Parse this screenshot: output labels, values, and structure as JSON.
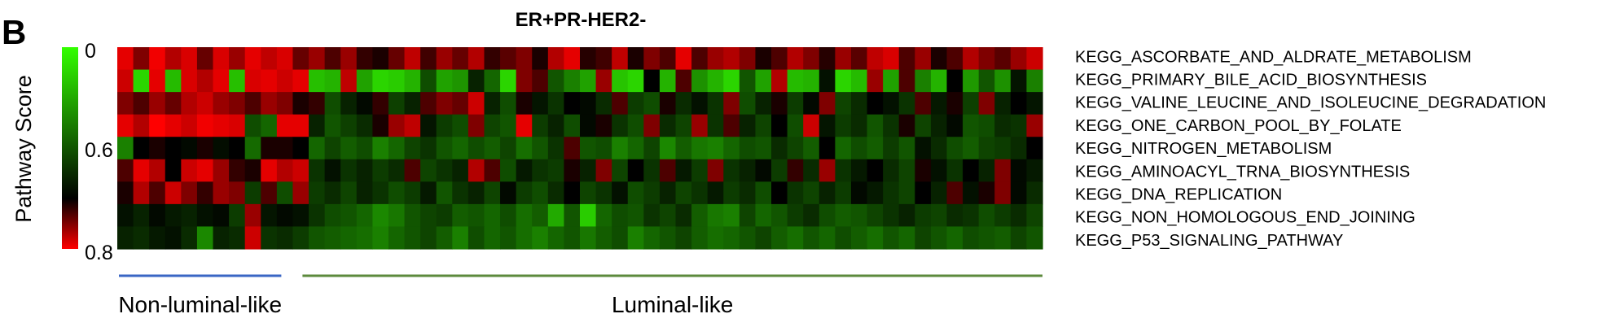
{
  "panel_letter": "B",
  "chart_data": {
    "type": "heatmap",
    "title": "ER+PR-HER2-",
    "colorbar": {
      "label": "Pathway Score",
      "ticks": [
        "0",
        "0.6",
        "0.8"
      ],
      "colors": {
        "low": "#33ff00",
        "mid": "#000000",
        "high": "#ff0000"
      }
    },
    "rows": [
      "KEGG_ASCORBATE_AND_ALDRATE_METABOLISM",
      "KEGG_PRIMARY_BILE_ACID_BIOSYNTHESIS",
      "KEGG_VALINE_LEUCINE_AND_ISOLEUCINE_DEGRADATION",
      "KEGG_ONE_CARBON_POOL_BY_FOLATE",
      "KEGG_NITROGEN_METABOLISM",
      "KEGG_AMINOACYL_TRNA_BIOSYNTHESIS",
      "KEGG_DNA_REPLICATION",
      "KEGG_NON_HOMOLOGOUS_END_JOINING",
      "KEGG_P53_SIGNALING_PATHWAY"
    ],
    "groups": [
      {
        "name": "Non-luminal-like",
        "columns": 11,
        "color": "#3a66c4"
      },
      {
        "name": "Luminal-like",
        "columns": 47,
        "color": "#5c8a3c"
      }
    ],
    "values": [
      [
        0.78,
        0.7,
        0.79,
        0.74,
        0.77,
        0.68,
        0.77,
        0.72,
        0.78,
        0.75,
        0.77,
        0.68,
        0.72,
        0.66,
        0.72,
        0.64,
        0.62,
        0.68,
        0.75,
        0.65,
        0.72,
        0.68,
        0.74,
        0.64,
        0.67,
        0.7,
        0.62,
        0.74,
        0.78,
        0.63,
        0.65,
        0.75,
        0.62,
        0.7,
        0.66,
        0.78,
        0.66,
        0.72,
        0.74,
        0.7,
        0.62,
        0.66,
        0.74,
        0.7,
        0.63,
        0.72,
        0.67,
        0.75,
        0.77,
        0.66,
        0.72,
        0.62,
        0.66,
        0.74,
        0.7,
        0.67,
        0.72,
        0.76
      ],
      [
        0.76,
        0.1,
        0.78,
        0.16,
        0.77,
        0.74,
        0.78,
        0.15,
        0.77,
        0.78,
        0.76,
        0.78,
        0.15,
        0.18,
        0.75,
        0.22,
        0.1,
        0.12,
        0.18,
        0.42,
        0.22,
        0.25,
        0.52,
        0.36,
        0.1,
        0.7,
        0.66,
        0.4,
        0.3,
        0.22,
        0.72,
        0.14,
        0.1,
        0.6,
        0.18,
        0.66,
        0.26,
        0.18,
        0.1,
        0.4,
        0.22,
        0.74,
        0.16,
        0.18,
        0.56,
        0.1,
        0.16,
        0.72,
        0.22,
        0.66,
        0.3,
        0.18,
        0.6,
        0.24,
        0.4,
        0.26,
        0.55,
        0.3
      ],
      [
        0.7,
        0.66,
        0.72,
        0.68,
        0.74,
        0.76,
        0.72,
        0.7,
        0.66,
        0.72,
        0.7,
        0.62,
        0.64,
        0.42,
        0.52,
        0.58,
        0.64,
        0.45,
        0.52,
        0.66,
        0.7,
        0.68,
        0.76,
        0.52,
        0.42,
        0.62,
        0.55,
        0.48,
        0.6,
        0.58,
        0.5,
        0.66,
        0.46,
        0.42,
        0.62,
        0.5,
        0.56,
        0.48,
        0.7,
        0.42,
        0.52,
        0.62,
        0.46,
        0.58,
        0.7,
        0.44,
        0.5,
        0.6,
        0.56,
        0.48,
        0.66,
        0.54,
        0.62,
        0.45,
        0.7,
        0.52,
        0.6,
        0.55
      ],
      [
        0.78,
        0.74,
        0.8,
        0.78,
        0.76,
        0.79,
        0.78,
        0.77,
        0.42,
        0.36,
        0.78,
        0.78,
        0.52,
        0.4,
        0.45,
        0.5,
        0.62,
        0.72,
        0.75,
        0.55,
        0.46,
        0.42,
        0.7,
        0.44,
        0.4,
        0.78,
        0.46,
        0.52,
        0.42,
        0.58,
        0.62,
        0.48,
        0.42,
        0.7,
        0.5,
        0.44,
        0.72,
        0.48,
        0.66,
        0.52,
        0.44,
        0.6,
        0.42,
        0.76,
        0.55,
        0.46,
        0.5,
        0.4,
        0.48,
        0.62,
        0.44,
        0.52,
        0.58,
        0.4,
        0.42,
        0.5,
        0.48,
        0.72
      ],
      [
        0.3,
        0.6,
        0.62,
        0.6,
        0.58,
        0.62,
        0.57,
        0.6,
        0.35,
        0.62,
        0.62,
        0.6,
        0.36,
        0.44,
        0.38,
        0.42,
        0.3,
        0.36,
        0.44,
        0.48,
        0.4,
        0.36,
        0.42,
        0.38,
        0.44,
        0.34,
        0.4,
        0.48,
        0.66,
        0.4,
        0.42,
        0.3,
        0.36,
        0.44,
        0.28,
        0.38,
        0.32,
        0.3,
        0.36,
        0.42,
        0.4,
        0.5,
        0.44,
        0.38,
        0.6,
        0.36,
        0.42,
        0.38,
        0.46,
        0.4,
        0.56,
        0.5,
        0.42,
        0.38,
        0.44,
        0.46,
        0.5,
        0.6
      ],
      [
        0.66,
        0.78,
        0.74,
        0.6,
        0.76,
        0.78,
        0.72,
        0.64,
        0.62,
        0.78,
        0.74,
        0.76,
        0.48,
        0.56,
        0.48,
        0.52,
        0.46,
        0.5,
        0.66,
        0.44,
        0.48,
        0.52,
        0.74,
        0.66,
        0.42,
        0.54,
        0.48,
        0.46,
        0.62,
        0.52,
        0.7,
        0.44,
        0.6,
        0.48,
        0.66,
        0.54,
        0.46,
        0.7,
        0.48,
        0.52,
        0.58,
        0.46,
        0.64,
        0.5,
        0.72,
        0.48,
        0.54,
        0.6,
        0.5,
        0.44,
        0.62,
        0.56,
        0.48,
        0.6,
        0.52,
        0.7,
        0.58,
        0.54
      ],
      [
        0.62,
        0.74,
        0.66,
        0.76,
        0.7,
        0.64,
        0.72,
        0.7,
        0.46,
        0.66,
        0.42,
        0.72,
        0.46,
        0.5,
        0.44,
        0.52,
        0.48,
        0.42,
        0.46,
        0.54,
        0.4,
        0.48,
        0.52,
        0.44,
        0.58,
        0.46,
        0.42,
        0.5,
        0.6,
        0.44,
        0.48,
        0.56,
        0.42,
        0.46,
        0.52,
        0.44,
        0.48,
        0.54,
        0.46,
        0.5,
        0.42,
        0.6,
        0.48,
        0.44,
        0.52,
        0.46,
        0.58,
        0.54,
        0.48,
        0.44,
        0.6,
        0.52,
        0.66,
        0.56,
        0.62,
        0.7,
        0.58,
        0.5
      ],
      [
        0.56,
        0.52,
        0.58,
        0.54,
        0.52,
        0.56,
        0.58,
        0.46,
        0.72,
        0.55,
        0.58,
        0.56,
        0.48,
        0.42,
        0.4,
        0.36,
        0.28,
        0.32,
        0.4,
        0.44,
        0.46,
        0.38,
        0.4,
        0.36,
        0.42,
        0.34,
        0.38,
        0.2,
        0.4,
        0.12,
        0.36,
        0.42,
        0.4,
        0.48,
        0.44,
        0.5,
        0.38,
        0.32,
        0.3,
        0.44,
        0.36,
        0.4,
        0.46,
        0.5,
        0.42,
        0.38,
        0.4,
        0.44,
        0.48,
        0.52,
        0.46,
        0.44,
        0.5,
        0.48,
        0.42,
        0.46,
        0.5,
        0.44
      ],
      [
        0.52,
        0.5,
        0.54,
        0.56,
        0.5,
        0.28,
        0.52,
        0.5,
        0.76,
        0.48,
        0.5,
        0.46,
        0.4,
        0.38,
        0.36,
        0.34,
        0.3,
        0.36,
        0.4,
        0.44,
        0.38,
        0.3,
        0.42,
        0.36,
        0.4,
        0.34,
        0.3,
        0.36,
        0.4,
        0.32,
        0.38,
        0.42,
        0.3,
        0.36,
        0.4,
        0.44,
        0.38,
        0.34,
        0.36,
        0.4,
        0.44,
        0.38,
        0.34,
        0.4,
        0.36,
        0.42,
        0.38,
        0.34,
        0.4,
        0.36,
        0.44,
        0.4,
        0.36,
        0.42,
        0.4,
        0.38,
        0.44,
        0.4
      ]
    ]
  }
}
